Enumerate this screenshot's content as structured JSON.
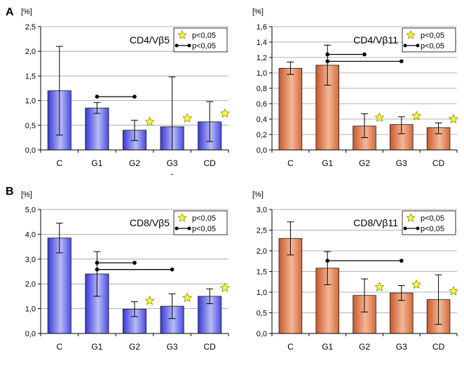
{
  "panel_labels": [
    "A",
    "B"
  ],
  "legend": {
    "star_label": "p<0,05",
    "line_label": "p<0,05"
  },
  "chart_data": [
    {
      "type": "bar",
      "title": "CD4/Vβ5",
      "ylabel": "[%]",
      "ylim": [
        0,
        2.5
      ],
      "ytick_labels": [
        "0,0",
        "0,5",
        "1,0",
        "1,5",
        "2,0",
        "2,5"
      ],
      "ytick_values": [
        0,
        0.5,
        1,
        1.5,
        2,
        2.5
      ],
      "categories": [
        "C",
        "G1",
        "G2",
        "G3",
        "CD"
      ],
      "values": [
        1.2,
        0.85,
        0.4,
        0.47,
        0.57
      ],
      "error_low": [
        0.3,
        0.74,
        0.19,
        0.0,
        0.17
      ],
      "error_high": [
        2.1,
        0.96,
        0.6,
        1.48,
        0.98
      ],
      "star_markers": [
        "G2",
        "G3",
        "CD"
      ],
      "significance_brackets": [
        {
          "from": "G1",
          "to": "G2",
          "y": 1.08
        }
      ],
      "extra_label": {
        "category": "G3",
        "text": "-"
      },
      "bar_color": "#4545e0",
      "grid": true
    },
    {
      "type": "bar",
      "title": "CD4/Vβ11",
      "ylabel": "[%]",
      "ylim": [
        0,
        1.6
      ],
      "ytick_labels": [
        "0,0",
        "0,2",
        "0,4",
        "0,6",
        "0,8",
        "1,0",
        "1,2",
        "1,4",
        "1,6"
      ],
      "ytick_values": [
        0,
        0.2,
        0.4,
        0.6,
        0.8,
        1.0,
        1.2,
        1.4,
        1.6
      ],
      "categories": [
        "C",
        "G1",
        "G2",
        "G3",
        "CD"
      ],
      "values": [
        1.06,
        1.1,
        0.31,
        0.33,
        0.29
      ],
      "error_low": [
        0.98,
        0.84,
        0.16,
        0.21,
        0.21
      ],
      "error_high": [
        1.14,
        1.36,
        0.47,
        0.43,
        0.35
      ],
      "star_markers": [
        "G2",
        "G3",
        "CD"
      ],
      "significance_brackets": [
        {
          "from": "G1",
          "to": "G2",
          "y": 1.24
        },
        {
          "from": "G1",
          "to": "G3",
          "y": 1.15
        }
      ],
      "bar_color": "#d06a3a",
      "grid": true
    },
    {
      "type": "bar",
      "title": "CD8/Vβ5",
      "ylabel": "[%]",
      "ylim": [
        0,
        5
      ],
      "ytick_labels": [
        "0,0",
        "1,0",
        "2,0",
        "3,0",
        "4,0",
        "5,0"
      ],
      "ytick_values": [
        0,
        1,
        2,
        3,
        4,
        5
      ],
      "categories": [
        "C",
        "G1",
        "G2",
        "G3",
        "CD"
      ],
      "values": [
        3.85,
        2.4,
        0.98,
        1.1,
        1.5
      ],
      "error_low": [
        3.25,
        1.5,
        0.68,
        0.6,
        1.2
      ],
      "error_high": [
        4.45,
        3.3,
        1.28,
        1.6,
        1.8
      ],
      "star_markers": [
        "G2",
        "G3",
        "CD"
      ],
      "significance_brackets": [
        {
          "from": "G1",
          "to": "G2",
          "y": 2.85
        },
        {
          "from": "G1",
          "to": "G3",
          "y": 2.58
        }
      ],
      "bar_color": "#4545e0",
      "grid": true
    },
    {
      "type": "bar",
      "title": "CD8/Vβ11",
      "ylabel": "[%]",
      "ylim": [
        0,
        3
      ],
      "ytick_labels": [
        "0,0",
        "0,5",
        "1,0",
        "1,5",
        "2,0",
        "2,5",
        "3,0"
      ],
      "ytick_values": [
        0,
        0.5,
        1,
        1.5,
        2,
        2.5,
        3
      ],
      "categories": [
        "C",
        "G1",
        "G2",
        "G3",
        "CD"
      ],
      "values": [
        2.3,
        1.58,
        0.92,
        0.98,
        0.82
      ],
      "error_low": [
        1.9,
        1.18,
        0.52,
        0.8,
        0.22
      ],
      "error_high": [
        2.7,
        1.98,
        1.32,
        1.16,
        1.42
      ],
      "star_markers": [
        "G2",
        "G3",
        "CD"
      ],
      "significance_brackets": [
        {
          "from": "G1",
          "to": "G3",
          "y": 1.76
        }
      ],
      "bar_color": "#d06a3a",
      "grid": true
    }
  ]
}
